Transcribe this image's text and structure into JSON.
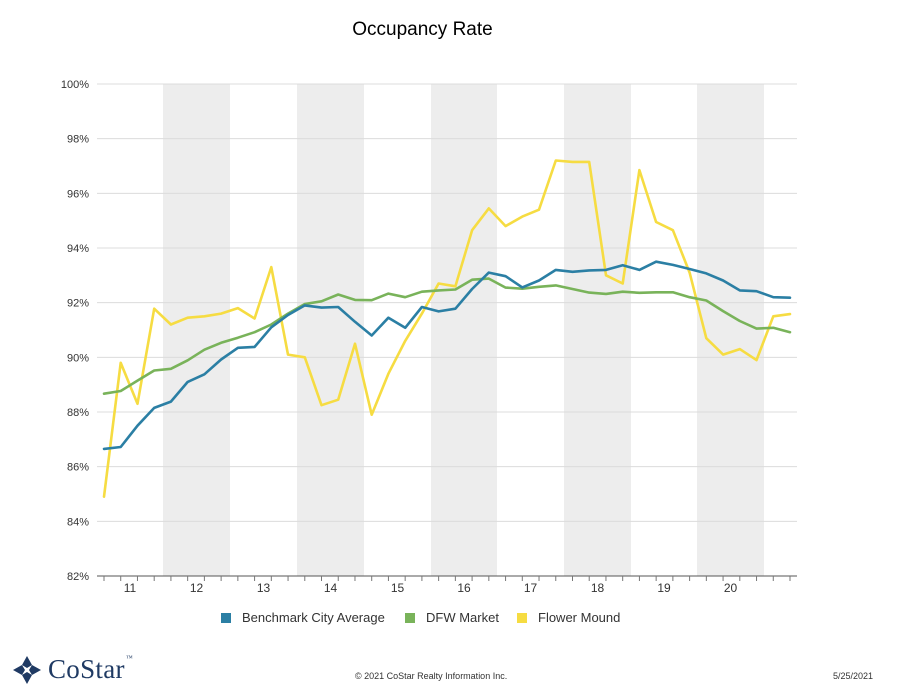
{
  "footer": {
    "logo_text": "CoStar",
    "logo_tm": "™",
    "copyright": "© 2021 CoStar Realty Information Inc.",
    "date": "5/25/2021"
  },
  "chart_data": {
    "type": "line",
    "title": "Occupancy Rate",
    "xlabel": "",
    "ylabel": "",
    "x_tick_labels": [
      "11",
      "12",
      "13",
      "14",
      "15",
      "16",
      "17",
      "18",
      "19",
      "20"
    ],
    "y_tick_labels": [
      "82%",
      "84%",
      "86%",
      "88%",
      "90%",
      "92%",
      "94%",
      "96%",
      "98%",
      "100%"
    ],
    "ylim": [
      82,
      100
    ],
    "grid": "horizontal gridlines with alternating shaded year bands",
    "legend_position": "bottom",
    "series": [
      {
        "name": "Benchmark City Average",
        "color": "#2b7fa4",
        "values": [
          86.65,
          86.72,
          87.5,
          88.15,
          88.38,
          89.1,
          89.38,
          89.92,
          90.35,
          90.38,
          91.1,
          91.55,
          91.9,
          91.82,
          91.84,
          91.3,
          90.8,
          91.45,
          91.08,
          91.84,
          91.68,
          91.78,
          92.5,
          93.1,
          92.97,
          92.56,
          92.81,
          93.2,
          93.13,
          93.18,
          93.2,
          93.37,
          93.2,
          93.5,
          93.38,
          93.23,
          93.07,
          92.81,
          92.45,
          92.42,
          92.2,
          92.18
        ]
      },
      {
        "name": "DFW Market",
        "color": "#79b35a",
        "values": [
          88.67,
          88.77,
          89.15,
          89.52,
          89.58,
          89.89,
          90.28,
          90.53,
          90.72,
          90.92,
          91.2,
          91.6,
          91.95,
          92.05,
          92.3,
          92.1,
          92.09,
          92.33,
          92.2,
          92.4,
          92.45,
          92.48,
          92.84,
          92.88,
          92.55,
          92.51,
          92.58,
          92.63,
          92.5,
          92.37,
          92.32,
          92.4,
          92.36,
          92.38,
          92.38,
          92.2,
          92.08,
          91.69,
          91.33,
          91.05,
          91.08,
          90.92
        ]
      },
      {
        "name": "Flower Mound",
        "color": "#f6dc42",
        "values": [
          84.9,
          89.8,
          88.3,
          91.78,
          91.2,
          91.45,
          91.5,
          91.6,
          91.8,
          91.42,
          93.3,
          90.1,
          90.0,
          88.25,
          88.45,
          90.5,
          87.9,
          89.4,
          90.6,
          91.6,
          92.7,
          92.6,
          94.65,
          95.45,
          94.8,
          95.15,
          95.4,
          97.2,
          97.15,
          97.15,
          93.0,
          92.7,
          96.85,
          94.95,
          94.65,
          93.1,
          90.7,
          90.1,
          90.3,
          89.9,
          91.5,
          91.58
        ]
      }
    ]
  }
}
